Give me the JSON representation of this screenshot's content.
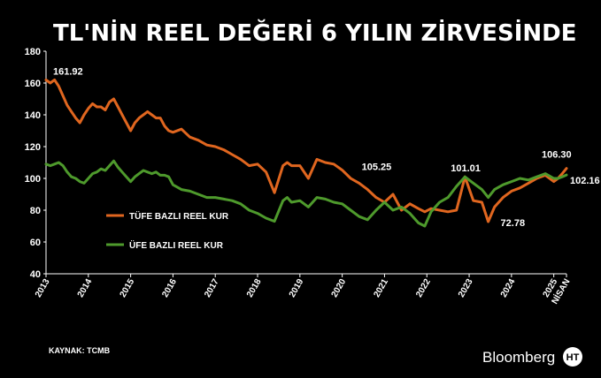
{
  "chart_data": {
    "type": "line",
    "title": "TL'NİN REEL DEĞERİ 6 YILIN ZİRVESİNDE",
    "xlabel": "",
    "ylabel": "",
    "ylim": [
      40,
      180
    ],
    "y_ticks": [
      "180",
      "160",
      "140",
      "120",
      "100",
      "80",
      "60",
      "40"
    ],
    "x_ticks": [
      "2013",
      "2014",
      "2015",
      "2016",
      "2017",
      "2018",
      "2019",
      "2020",
      "2021",
      "2022",
      "2023",
      "2024",
      "2025",
      "NİSAN"
    ],
    "x_ticks_years": [
      2013,
      2014,
      2015,
      2016,
      2017,
      2018,
      2019,
      2020,
      2021,
      2022,
      2023,
      2024,
      2025,
      2025.3
    ],
    "xlim": [
      2013,
      2025.3
    ],
    "grid": false,
    "legend_position": "middle-left",
    "series": [
      {
        "name": "TÜFE BAZLI REEL KUR",
        "color": "#e0661f",
        "x": [
          2013.0,
          2013.1,
          2013.2,
          2013.3,
          2013.4,
          2013.5,
          2013.6,
          2013.7,
          2013.8,
          2013.9,
          2014.0,
          2014.1,
          2014.2,
          2014.3,
          2014.4,
          2014.5,
          2014.6,
          2014.7,
          2014.8,
          2014.9,
          2015.0,
          2015.1,
          2015.2,
          2015.3,
          2015.4,
          2015.5,
          2015.6,
          2015.7,
          2015.8,
          2015.9,
          2016.0,
          2016.2,
          2016.4,
          2016.6,
          2016.8,
          2017.0,
          2017.2,
          2017.4,
          2017.6,
          2017.8,
          2018.0,
          2018.2,
          2018.4,
          2018.6,
          2018.7,
          2018.8,
          2019.0,
          2019.2,
          2019.3,
          2019.4,
          2019.6,
          2019.8,
          2020.0,
          2020.2,
          2020.4,
          2020.6,
          2020.8,
          2021.0,
          2021.2,
          2021.4,
          2021.6,
          2021.8,
          2021.95,
          2022.1,
          2022.3,
          2022.5,
          2022.7,
          2022.9,
          2023.1,
          2023.3,
          2023.45,
          2023.6,
          2023.8,
          2024.0,
          2024.2,
          2024.4,
          2024.6,
          2024.8,
          2025.0,
          2025.1,
          2025.2,
          2025.3
        ],
        "values": [
          161.92,
          160,
          162,
          158,
          152,
          146,
          142,
          138,
          135,
          140,
          144,
          147,
          145,
          145,
          143,
          148,
          150,
          145,
          140,
          135,
          130,
          135,
          138,
          140,
          142,
          140,
          138,
          138,
          133,
          130,
          129,
          131,
          126,
          124,
          121,
          120,
          118,
          115,
          112,
          108,
          109,
          104,
          91,
          108,
          110,
          108,
          108,
          100,
          106,
          112,
          110,
          109,
          105.25,
          100,
          97,
          93,
          88,
          85,
          90,
          80,
          84,
          81,
          79,
          81,
          80,
          79,
          80,
          101.01,
          86,
          85,
          72.78,
          82,
          88,
          92,
          94,
          97,
          100,
          102,
          98,
          100,
          103,
          106.3
        ]
      },
      {
        "name": "ÜFE BAZLI REEL KUR",
        "color": "#4e9a2c",
        "x": [
          2013.0,
          2013.1,
          2013.2,
          2013.3,
          2013.4,
          2013.5,
          2013.6,
          2013.7,
          2013.8,
          2013.9,
          2014.0,
          2014.1,
          2014.2,
          2014.3,
          2014.4,
          2014.5,
          2014.6,
          2014.7,
          2014.8,
          2014.9,
          2015.0,
          2015.1,
          2015.2,
          2015.3,
          2015.4,
          2015.5,
          2015.6,
          2015.7,
          2015.8,
          2015.9,
          2016.0,
          2016.2,
          2016.4,
          2016.6,
          2016.8,
          2017.0,
          2017.2,
          2017.4,
          2017.6,
          2017.8,
          2018.0,
          2018.2,
          2018.4,
          2018.6,
          2018.7,
          2018.8,
          2019.0,
          2019.2,
          2019.3,
          2019.4,
          2019.6,
          2019.8,
          2020.0,
          2020.2,
          2020.4,
          2020.6,
          2020.8,
          2021.0,
          2021.2,
          2021.4,
          2021.6,
          2021.8,
          2021.95,
          2022.1,
          2022.3,
          2022.5,
          2022.7,
          2022.9,
          2023.1,
          2023.3,
          2023.45,
          2023.6,
          2023.8,
          2024.0,
          2024.2,
          2024.4,
          2024.6,
          2024.8,
          2025.0,
          2025.1,
          2025.2,
          2025.3
        ],
        "values": [
          109,
          108,
          109,
          110,
          108,
          104,
          101,
          100,
          98,
          97,
          100,
          103,
          104,
          106,
          105,
          108,
          111,
          107,
          104,
          101,
          98,
          101,
          103,
          105,
          104,
          103,
          104,
          102,
          102,
          101,
          96,
          93,
          92,
          90,
          88,
          88,
          87,
          86,
          84,
          80,
          78,
          75,
          73,
          86,
          88,
          85,
          86,
          82,
          85,
          88,
          87,
          85,
          84,
          80,
          76,
          74,
          80,
          85,
          80,
          82,
          78,
          72,
          70,
          79,
          85,
          88,
          95,
          101,
          97,
          93,
          88,
          93,
          96,
          98,
          100,
          99,
          101,
          103,
          100,
          100,
          101,
          102.16
        ]
      }
    ],
    "annotations": [
      {
        "text": "161.92",
        "series": 0,
        "x": 2013.0,
        "y": 161.92
      },
      {
        "text": "105.25",
        "series": 0,
        "x": 2020.0,
        "y": 105.25
      },
      {
        "text": "101.01",
        "series": 0,
        "x": 2022.9,
        "y": 101.01
      },
      {
        "text": "72.78",
        "series": 0,
        "x": 2023.45,
        "y": 72.78
      },
      {
        "text": "106.30",
        "series": 0,
        "x": 2025.3,
        "y": 106.3
      },
      {
        "text": "102.16",
        "series": 1,
        "x": 2025.3,
        "y": 102.16
      }
    ]
  },
  "source_label": "KAYNAK: TCMB",
  "brand": {
    "name": "Bloomberg",
    "logo_letters": "HT"
  }
}
